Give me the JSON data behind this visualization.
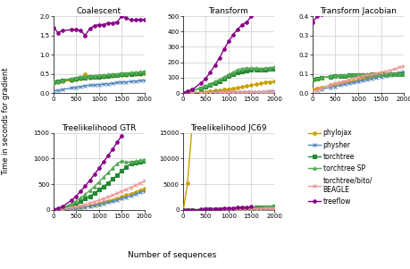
{
  "x": [
    10,
    100,
    200,
    400,
    500,
    600,
    700,
    800,
    900,
    1000,
    1100,
    1200,
    1300,
    1400,
    1500,
    1600,
    1700,
    1800,
    1900,
    2000
  ],
  "series": {
    "phylojax": {
      "color": "#C8A000",
      "marker": "o",
      "linestyle": "-",
      "linewidth": 1.0,
      "markersize": 2.5,
      "coalescent": [
        0.25,
        0.28,
        0.3,
        0.33,
        0.35,
        0.37,
        0.5,
        0.4,
        0.41,
        0.42,
        0.43,
        0.44,
        0.45,
        0.46,
        0.47,
        0.47,
        0.48,
        0.49,
        0.5,
        0.51
      ],
      "transform": [
        0.5,
        1.5,
        3.0,
        6.5,
        9.0,
        12.0,
        15.0,
        18.0,
        22.0,
        26.0,
        30.0,
        34.0,
        39.0,
        44.0,
        50.0,
        56.0,
        62.0,
        68.0,
        72.0,
        76.0
      ],
      "transform_jacobian": [
        0.02,
        0.025,
        0.03,
        0.04,
        0.045,
        0.05,
        0.055,
        0.06,
        0.065,
        0.07,
        0.075,
        0.08,
        0.085,
        0.09,
        0.095,
        0.095,
        0.096,
        0.097,
        0.098,
        0.099
      ],
      "treelikelihood_gtr": [
        2,
        5,
        10,
        27,
        38,
        52,
        68,
        85,
        105,
        125,
        148,
        170,
        196,
        223,
        255,
        286,
        315,
        348,
        385,
        420
      ],
      "treelikelihood_jc69": [
        5,
        5200,
        16200,
        null,
        null,
        null,
        null,
        null,
        null,
        null,
        null,
        null,
        null,
        null,
        null,
        null,
        null,
        null,
        null,
        null
      ]
    },
    "physher": {
      "color": "#5588BB",
      "marker": "x",
      "linestyle": "-",
      "linewidth": 1.0,
      "markersize": 3.5,
      "coalescent": [
        0.05,
        0.07,
        0.09,
        0.13,
        0.15,
        0.17,
        0.19,
        0.2,
        0.21,
        0.22,
        0.23,
        0.24,
        0.25,
        0.27,
        0.28,
        0.29,
        0.3,
        0.31,
        0.32,
        0.33
      ],
      "transform": [
        0.5,
        0.8,
        1.2,
        2.0,
        2.5,
        3.0,
        3.5,
        4.0,
        4.5,
        5.0,
        5.5,
        6.0,
        6.5,
        7.0,
        7.5,
        8.0,
        8.5,
        9.0,
        9.5,
        10.0
      ],
      "transform_jacobian": [
        0.01,
        0.015,
        0.02,
        0.03,
        0.035,
        0.04,
        0.045,
        0.05,
        0.055,
        0.06,
        0.065,
        0.07,
        0.075,
        0.08,
        0.085,
        0.09,
        0.095,
        0.1,
        0.105,
        0.11
      ],
      "treelikelihood_gtr": [
        1.5,
        4,
        8,
        22,
        30,
        42,
        56,
        70,
        88,
        105,
        125,
        145,
        167,
        192,
        220,
        248,
        275,
        305,
        338,
        370
      ],
      "treelikelihood_jc69": [
        1.5,
        2,
        3,
        8,
        12,
        18,
        25,
        32,
        40,
        50,
        62,
        75,
        90,
        108,
        125,
        145,
        165,
        185,
        210,
        235
      ]
    },
    "torchtree": {
      "color": "#228833",
      "marker": "s",
      "linestyle": "-",
      "linewidth": 1.0,
      "markersize": 2.5,
      "coalescent": [
        0.27,
        0.3,
        0.32,
        0.36,
        0.38,
        0.4,
        0.4,
        0.41,
        0.42,
        0.43,
        0.44,
        0.45,
        0.46,
        0.47,
        0.48,
        0.49,
        0.5,
        0.51,
        0.52,
        0.53
      ],
      "transform": [
        2,
        8,
        15,
        30,
        40,
        52,
        65,
        78,
        92,
        108,
        120,
        132,
        142,
        148,
        152,
        153,
        152,
        153,
        155,
        157
      ],
      "transform_jacobian": [
        0.07,
        0.075,
        0.08,
        0.085,
        0.087,
        0.089,
        0.09,
        0.091,
        0.092,
        0.093,
        0.094,
        0.095,
        0.096,
        0.096,
        0.097,
        0.097,
        0.098,
        0.099,
        0.099,
        0.1
      ],
      "treelikelihood_gtr": [
        3,
        12,
        30,
        85,
        120,
        165,
        215,
        265,
        325,
        390,
        455,
        525,
        600,
        675,
        760,
        840,
        900,
        920,
        945,
        960
      ],
      "treelikelihood_jc69": [
        2,
        5,
        12,
        35,
        52,
        72,
        95,
        120,
        150,
        182,
        215,
        250,
        290,
        330,
        375,
        420,
        468,
        518,
        570,
        625
      ]
    },
    "torchtree_sp": {
      "color": "#55AA55",
      "marker": "^",
      "linestyle": "-",
      "linewidth": 1.0,
      "markersize": 2.5,
      "coalescent": [
        0.27,
        0.3,
        0.33,
        0.38,
        0.4,
        0.42,
        0.43,
        0.44,
        0.45,
        0.46,
        0.47,
        0.48,
        0.49,
        0.5,
        0.51,
        0.52,
        0.53,
        0.54,
        0.55,
        0.55
      ],
      "transform": [
        2,
        8,
        16,
        35,
        46,
        60,
        74,
        88,
        104,
        120,
        136,
        152,
        160,
        162,
        162,
        163,
        160,
        162,
        165,
        168
      ],
      "transform_jacobian": [
        0.07,
        0.075,
        0.08,
        0.087,
        0.09,
        0.092,
        0.093,
        0.094,
        0.095,
        0.096,
        0.097,
        0.097,
        0.098,
        0.098,
        0.099,
        0.099,
        0.1,
        0.1,
        0.1,
        0.1
      ],
      "treelikelihood_gtr": [
        4,
        18,
        42,
        120,
        172,
        235,
        305,
        378,
        458,
        545,
        635,
        725,
        815,
        900,
        960,
        930,
        940,
        950,
        965,
        965
      ],
      "treelikelihood_jc69": [
        2,
        6,
        15,
        42,
        62,
        88,
        115,
        145,
        180,
        218,
        258,
        300,
        345,
        390,
        440,
        492,
        548,
        605,
        662,
        720
      ]
    },
    "torchtree_bito_beagle": {
      "color": "#EE9999",
      "marker": "x",
      "linestyle": "-",
      "linewidth": 1.0,
      "markersize": 3.5,
      "coalescent": [
        null,
        null,
        null,
        null,
        null,
        null,
        null,
        null,
        null,
        null,
        null,
        null,
        null,
        null,
        null,
        null,
        null,
        null,
        null,
        null
      ],
      "transform": [
        0.3,
        0.6,
        1.0,
        1.8,
        2.2,
        2.6,
        3.0,
        3.5,
        4.0,
        4.5,
        5.0,
        5.5,
        6.0,
        6.5,
        7.0,
        7.5,
        8.0,
        8.5,
        9.0,
        9.5
      ],
      "transform_jacobian": [
        0.01,
        0.015,
        0.025,
        0.043,
        0.05,
        0.057,
        0.063,
        0.07,
        0.077,
        0.083,
        0.088,
        0.092,
        0.097,
        0.103,
        0.108,
        0.113,
        0.118,
        0.125,
        0.133,
        0.14
      ],
      "treelikelihood_gtr": [
        2,
        8,
        18,
        45,
        62,
        82,
        105,
        130,
        158,
        188,
        218,
        252,
        288,
        325,
        362,
        400,
        440,
        480,
        522,
        565
      ],
      "treelikelihood_jc69": [
        1.5,
        3,
        7,
        18,
        25,
        34,
        44,
        55,
        68,
        82,
        97,
        113,
        130,
        148,
        168,
        188,
        210,
        232,
        255,
        280
      ]
    },
    "treeflow": {
      "color": "#880088",
      "marker": "o",
      "linestyle": "-",
      "linewidth": 1.0,
      "markersize": 2.5,
      "coalescent": [
        1.7,
        1.57,
        1.62,
        1.65,
        1.65,
        1.62,
        1.5,
        1.68,
        1.75,
        1.78,
        1.78,
        1.82,
        1.82,
        1.85,
        2.0,
        1.95,
        1.9,
        1.9,
        1.92,
        1.9
      ],
      "transform": [
        2,
        10,
        22,
        65,
        95,
        135,
        180,
        228,
        285,
        335,
        380,
        415,
        445,
        462,
        500,
        null,
        null,
        null,
        null,
        null
      ],
      "transform_jacobian": [
        0.37,
        0.4,
        0.41,
        0.42,
        0.43,
        0.43,
        0.43,
        0.44,
        0.44,
        0.44,
        0.45,
        0.45,
        0.46,
        0.46,
        0.47,
        0.47,
        0.48,
        0.48,
        0.49,
        0.49
      ],
      "treelikelihood_gtr": [
        5,
        25,
        65,
        185,
        265,
        365,
        468,
        575,
        690,
        810,
        938,
        1058,
        1185,
        1318,
        1450,
        null,
        null,
        null,
        null,
        null
      ],
      "treelikelihood_jc69": [
        2,
        8,
        20,
        60,
        88,
        120,
        156,
        198,
        242,
        290,
        342,
        398,
        456,
        515,
        578,
        null,
        null,
        null,
        null,
        null
      ]
    }
  },
  "subplots": [
    "Coalescent",
    "Transform",
    "Transform Jacobian",
    "Treelikelihood GTR",
    "Treelikelihood JC69"
  ],
  "subplot_keys": [
    "coalescent",
    "transform",
    "transform_jacobian",
    "treelikelihood_gtr",
    "treelikelihood_jc69"
  ],
  "ylims": {
    "coalescent": [
      0,
      2.0
    ],
    "transform": [
      0,
      500
    ],
    "transform_jacobian": [
      0,
      0.4
    ],
    "treelikelihood_gtr": [
      0,
      1500
    ],
    "treelikelihood_jc69": [
      0,
      15000
    ]
  },
  "yticks": {
    "coalescent": [
      0.0,
      0.5,
      1.0,
      1.5,
      2.0
    ],
    "transform": [
      0,
      100,
      200,
      300,
      400,
      500
    ],
    "transform_jacobian": [
      0.0,
      0.1,
      0.2,
      0.3,
      0.4
    ],
    "treelikelihood_gtr": [
      0,
      500,
      1000,
      1500
    ],
    "treelikelihood_jc69": [
      0,
      5000,
      10000,
      15000
    ]
  },
  "xticks": [
    0,
    500,
    1000,
    1500,
    2000
  ],
  "xlabel": "Number of sequences",
  "ylabel": "Time in seconds for gradient",
  "series_order": [
    "phylojax",
    "physher",
    "torchtree",
    "torchtree_sp",
    "torchtree_bito_beagle",
    "treeflow"
  ],
  "legend_labels": [
    "phylojax",
    "physher",
    "torchtree",
    "torchtree SP",
    "torchtree/bito/\nBEAGLE",
    "treeflow"
  ],
  "background_color": "#FFFFFF",
  "grid_color": "#CCCCCC"
}
